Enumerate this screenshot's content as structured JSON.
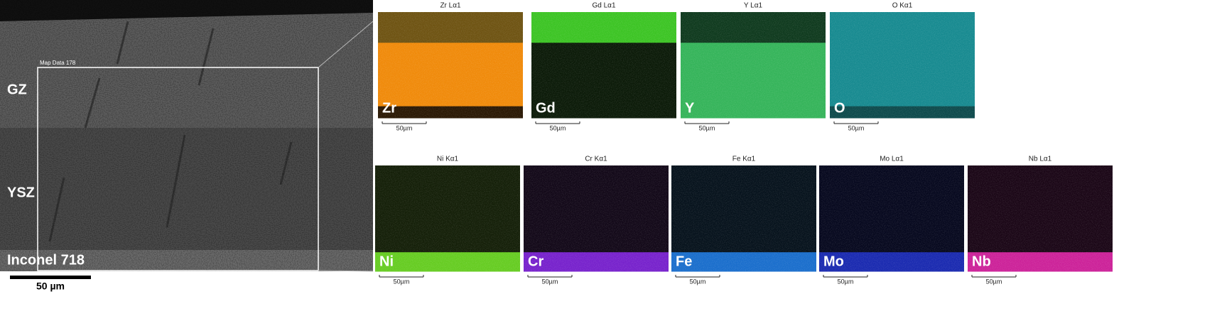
{
  "sem": {
    "layers": [
      "GZ",
      "YSZ",
      "Inconel 718"
    ],
    "map_label": "Map Data 178",
    "scale_bar": "50 µm"
  },
  "maps": [
    {
      "title": "Zr Lα1",
      "element": "Zr",
      "scale": "50µm"
    },
    {
      "title": "Gd Lα1",
      "element": "Gd",
      "scale": "50µm"
    },
    {
      "title": "Y Lα1",
      "element": "Y",
      "scale": "50µm"
    },
    {
      "title": "O Kα1",
      "element": "O",
      "scale": "50µm"
    },
    {
      "title": "Ni Kα1",
      "element": "Ni",
      "scale": "50µm"
    },
    {
      "title": "Cr Kα1",
      "element": "Cr",
      "scale": "50µm"
    },
    {
      "title": "Fe Kα1",
      "element": "Fe",
      "scale": "50µm"
    },
    {
      "title": "Mo Lα1",
      "element": "Mo",
      "scale": "50µm"
    },
    {
      "title": "Nb Lα1",
      "element": "Nb",
      "scale": "50µm"
    }
  ]
}
